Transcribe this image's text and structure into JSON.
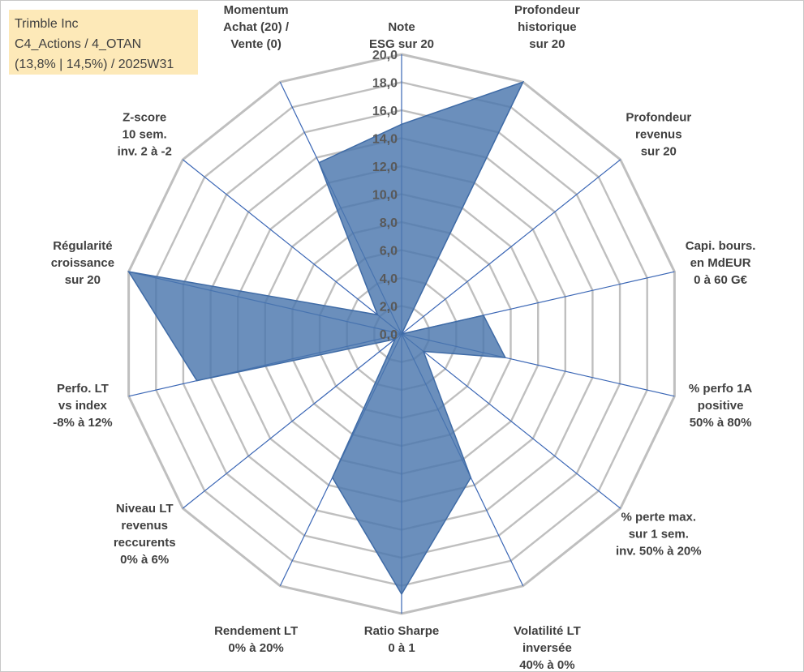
{
  "info_box": {
    "line1": "Trimble Inc",
    "line2": "C4_Actions / 4_OTAN",
    "line3": "(13,8% | 14,5%) / 2025W31"
  },
  "colors": {
    "fill": "#4a76ad",
    "stroke": "#3f6ba6",
    "axis": "#3a66b5",
    "grid": "#bfbfbf"
  },
  "chart_data": {
    "type": "radar",
    "rmax": 20,
    "tick_labels": [
      "0,0",
      "2,0",
      "4,0",
      "6,0",
      "8,0",
      "10,0",
      "12,0",
      "14,0",
      "16,0",
      "18,0",
      "20,0"
    ],
    "axes": [
      {
        "label": [
          "Note",
          "ESG sur 20"
        ],
        "value": 15.0
      },
      {
        "label": [
          "Profondeur",
          "historique",
          "sur 20"
        ],
        "value": 20.0
      },
      {
        "label": [
          "Profondeur",
          "revenus",
          "sur 20"
        ],
        "value": 0.0
      },
      {
        "label": [
          "Capi. bours.",
          "en MdEUR",
          "0 à 60 G€"
        ],
        "value": 6.0
      },
      {
        "label": [
          "% perfo 1A",
          "positive",
          "50% à 80%"
        ],
        "value": 7.6
      },
      {
        "label": [
          "% perte max.",
          "sur 1 sem.",
          "inv. 50% à 20%"
        ],
        "value": 2.0
      },
      {
        "label": [
          "Volatilité LT",
          "inversée",
          "40% à 0%"
        ],
        "value": 11.4
      },
      {
        "label": [
          "Ratio Sharpe",
          "0 à 1"
        ],
        "value": 18.6
      },
      {
        "label": [
          "Rendement LT",
          "0% à 20%"
        ],
        "value": 11.4
      },
      {
        "label": [
          "Niveau LT",
          "revenus",
          "reccurents",
          "0% à 6%"
        ],
        "value": 0.6
      },
      {
        "label": [
          "Perfo. LT",
          "vs index",
          "-8% à 12%"
        ],
        "value": 15.0
      },
      {
        "label": [
          "Régularité",
          "croissance",
          "sur 20"
        ],
        "value": 20.0
      },
      {
        "label": [
          "Z-score",
          "10 sem.",
          "inv. 2 à -2"
        ],
        "value": 2.2
      },
      {
        "label": [
          "Momentum",
          "Achat (20) /",
          "Vente (0)"
        ],
        "value": 13.6
      }
    ]
  }
}
